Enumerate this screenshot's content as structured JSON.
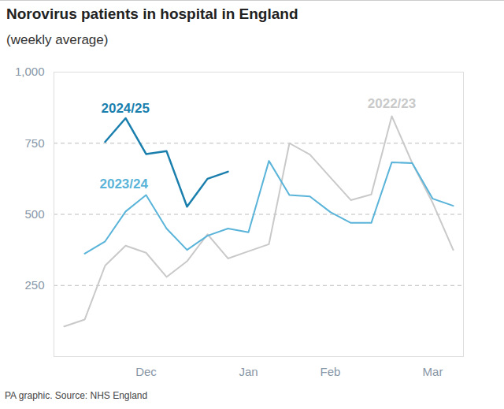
{
  "chart_data": {
    "type": "line",
    "title": "Norovirus patients in hospital in England",
    "subtitle": "(weekly average)",
    "caption": "PA graphic. Source: NHS England",
    "categories": [
      null,
      null,
      null,
      null,
      "Dec",
      null,
      null,
      null,
      null,
      "Jan",
      null,
      null,
      null,
      "Feb",
      null,
      null,
      null,
      null,
      "Mar",
      null
    ],
    "series": [
      {
        "name": "2024/25",
        "color": "#1b7fad",
        "values": [
          null,
          null,
          755,
          838,
          712,
          722,
          527,
          625,
          650,
          null,
          null,
          null,
          null,
          null,
          null,
          null,
          null,
          null,
          null,
          null
        ]
      },
      {
        "name": "2023/24",
        "color": "#5ab4d9",
        "values": [
          null,
          362,
          405,
          510,
          568,
          450,
          375,
          425,
          450,
          437,
          688,
          568,
          563,
          508,
          470,
          470,
          683,
          680,
          555,
          530
        ]
      },
      {
        "name": "2022/23",
        "color": "#c9c9c9",
        "values": [
          106,
          130,
          320,
          390,
          365,
          280,
          335,
          430,
          345,
          370,
          395,
          750,
          710,
          630,
          550,
          570,
          845,
          680,
          540,
          375
        ]
      }
    ],
    "ylim": [
      0,
      1000
    ],
    "yticks": [
      250,
      500,
      750,
      {
        "value": 1000,
        "label": "1,000"
      }
    ],
    "grid": true
  }
}
